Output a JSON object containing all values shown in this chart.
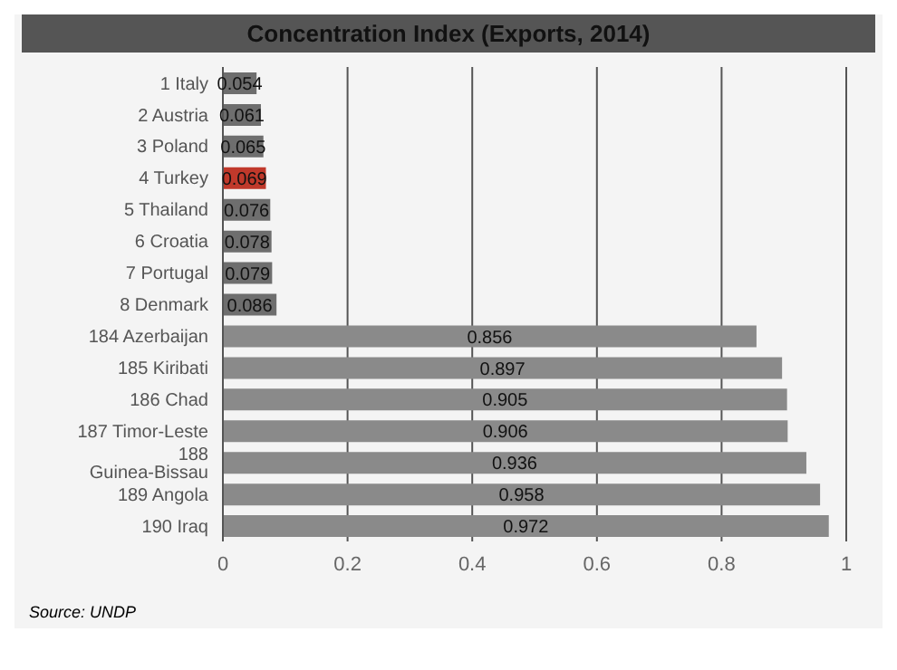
{
  "chart_data": {
    "type": "bar",
    "orientation": "horizontal",
    "title": "Concentration Index (Exports, 2014)",
    "categories": [
      "1 Italy",
      "2 Austria",
      "3 Poland",
      "4 Turkey",
      "5 Thailand",
      "6 Croatia",
      "7 Portugal",
      "8 Denmark",
      "184 Azerbaijan",
      "185 Kiribati",
      "186 Chad",
      "187 Timor-Leste",
      "188 Guinea-Bissau",
      "189 Angola",
      "190 Iraq"
    ],
    "values": [
      0.054,
      0.061,
      0.065,
      0.069,
      0.076,
      0.078,
      0.079,
      0.086,
      0.856,
      0.897,
      0.905,
      0.906,
      0.936,
      0.958,
      0.972
    ],
    "colors": [
      "#6e6e6e",
      "#6e6e6e",
      "#6e6e6e",
      "#c0392b",
      "#6e6e6e",
      "#6e6e6e",
      "#6e6e6e",
      "#6e6e6e",
      "#8a8a8a",
      "#8a8a8a",
      "#8a8a8a",
      "#8a8a8a",
      "#8a8a8a",
      "#8a8a8a",
      "#8a8a8a"
    ],
    "xlim": [
      0,
      1
    ],
    "xticks": [
      0,
      0.2,
      0.4,
      0.6,
      0.8,
      1
    ],
    "grid": "x",
    "data_labels": true,
    "annotations": [
      "Source: UNDP"
    ]
  }
}
